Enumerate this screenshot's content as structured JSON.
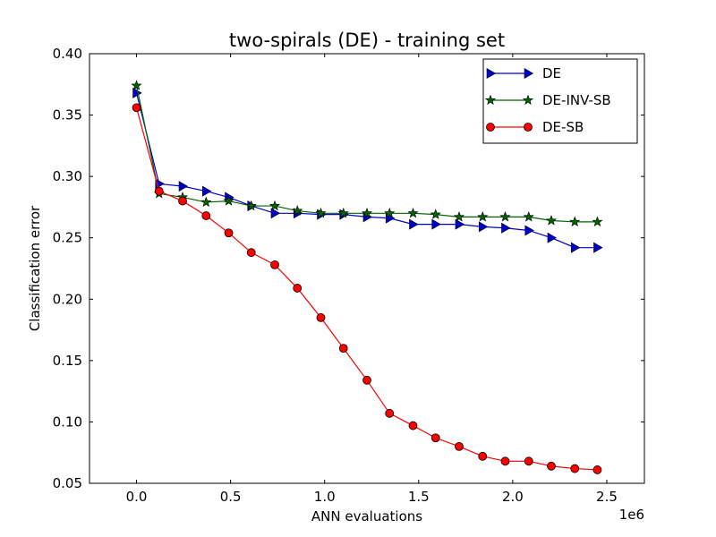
{
  "chart_data": {
    "type": "line",
    "title": "two-spirals (DE) - training set",
    "xlabel": "ANN evaluations",
    "ylabel": "Classification error",
    "x_offset_text": "1e6",
    "xlim": [
      -0.25,
      2.7
    ],
    "ylim": [
      0.05,
      0.4
    ],
    "xticks": [
      0.0,
      0.5,
      1.0,
      1.5,
      2.0,
      2.5
    ],
    "xtick_labels": [
      "0.0",
      "0.5",
      "1.0",
      "1.5",
      "2.0",
      "2.5"
    ],
    "yticks": [
      0.05,
      0.1,
      0.15,
      0.2,
      0.25,
      0.3,
      0.35,
      0.4
    ],
    "ytick_labels": [
      "0.05",
      "0.10",
      "0.15",
      "0.20",
      "0.25",
      "0.30",
      "0.35",
      "0.40"
    ],
    "grid": false,
    "legend_position": "top-right",
    "x": [
      0.0,
      0.12,
      0.245,
      0.37,
      0.49,
      0.61,
      0.735,
      0.855,
      0.98,
      1.1,
      1.225,
      1.345,
      1.47,
      1.59,
      1.715,
      1.84,
      1.96,
      2.085,
      2.205,
      2.33,
      2.45
    ],
    "series": [
      {
        "name": "DE",
        "color": "#0000cc",
        "marker": "triangle-right",
        "values": [
          0.368,
          0.294,
          0.292,
          0.288,
          0.283,
          0.276,
          0.27,
          0.27,
          0.269,
          0.269,
          0.267,
          0.266,
          0.261,
          0.261,
          0.261,
          0.259,
          0.258,
          0.256,
          0.25,
          0.242,
          0.242
        ]
      },
      {
        "name": "DE-INV-SB",
        "color": "#006400",
        "marker": "star",
        "values": [
          0.374,
          0.286,
          0.283,
          0.279,
          0.28,
          0.276,
          0.276,
          0.272,
          0.27,
          0.27,
          0.27,
          0.27,
          0.27,
          0.269,
          0.267,
          0.267,
          0.267,
          0.267,
          0.264,
          0.263,
          0.263
        ]
      },
      {
        "name": "DE-SB",
        "color": "#ff0000",
        "marker": "circle",
        "values": [
          0.356,
          0.288,
          0.28,
          0.268,
          0.254,
          0.238,
          0.228,
          0.209,
          0.185,
          0.16,
          0.134,
          0.107,
          0.097,
          0.087,
          0.08,
          0.072,
          0.068,
          0.068,
          0.064,
          0.062,
          0.061
        ]
      }
    ]
  }
}
